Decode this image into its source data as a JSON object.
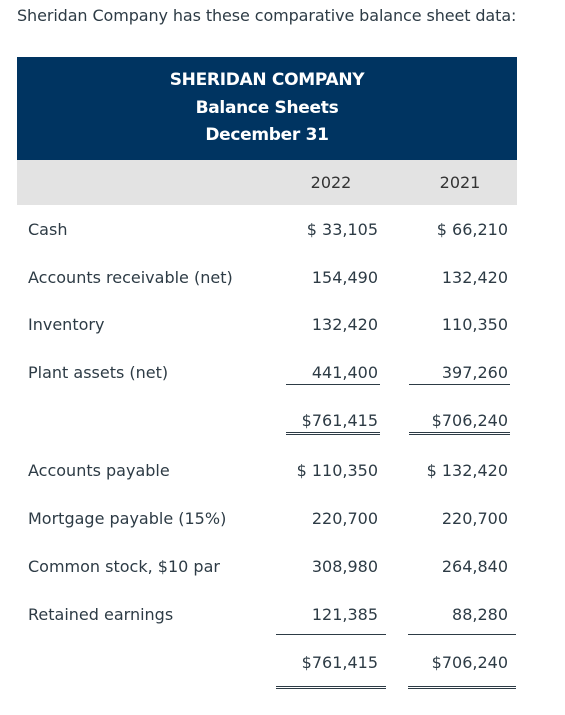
{
  "intro": "Sheridan Company has these comparative balance sheet data:",
  "header": {
    "company": "SHERIDAN COMPANY",
    "statement": "Balance Sheets",
    "date": "December 31"
  },
  "columns": [
    "2022",
    "2021"
  ],
  "rows": [
    {
      "label": "Cash",
      "v2022": "$ 33,105",
      "v2021": "$ 66,210"
    },
    {
      "label": "Accounts receivable (net)",
      "v2022": "154,490",
      "v2021": "132,420"
    },
    {
      "label": "Inventory",
      "v2022": "132,420",
      "v2021": "110,350"
    },
    {
      "label": "Plant assets (net)",
      "v2022": "441,400",
      "v2021": "397,260"
    },
    {
      "label": "",
      "v2022": "$761,415",
      "v2021": "$706,240"
    },
    {
      "label": "Accounts payable",
      "v2022": "$ 110,350",
      "v2021": "$ 132,420"
    },
    {
      "label": "Mortgage payable (15%)",
      "v2022": "220,700",
      "v2021": "220,700"
    },
    {
      "label": "Common stock, $10 par",
      "v2022": "308,980",
      "v2021": "264,840"
    },
    {
      "label": "Retained earnings",
      "v2022": "121,385",
      "v2021": "88,280"
    },
    {
      "label": "",
      "v2022": "$761,415",
      "v2021": "$706,240"
    }
  ]
}
